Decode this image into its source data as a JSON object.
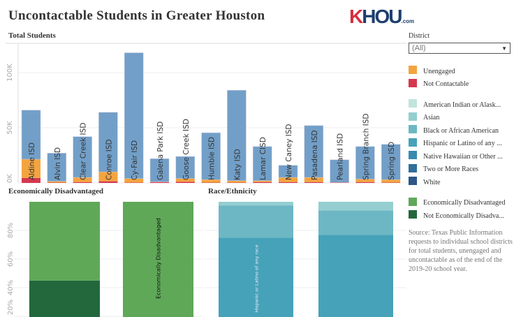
{
  "title": "Uncontactable Students in Greater Houston",
  "logo": {
    "text": "KHOU",
    "suffix": ".com"
  },
  "colors": {
    "total": "#729fc8",
    "unengaged": "#f3a43f",
    "not_contactable": "#d5384f",
    "econ": "#5fa858",
    "not_econ": "#23683d"
  },
  "chart_data": [
    {
      "type": "bar",
      "title": "Total Students",
      "stacked": true,
      "ylim": [
        0,
        125000
      ],
      "ticks": [
        "0K",
        "50K",
        "100K"
      ],
      "tick_values": [
        0,
        50000,
        100000
      ],
      "grid": true,
      "categories": [
        "Aldine ISD",
        "Alvin ISD",
        "Clear Creek ISD",
        "Conroe ISD",
        "Cy-Fair ISD",
        "Galena Park ISD",
        "Goose Creek ISD",
        "Humble ISD",
        "Katy ISD",
        "Lamar CISD",
        "New Caney ISD",
        "Pasadena ISD",
        "Pearland ISD",
        "Spring Branch ISD",
        "Spring ISD"
      ],
      "series": [
        {
          "name": "Not Contactable",
          "values": [
            4500,
            300,
            800,
            1500,
            300,
            800,
            1000,
            300,
            300,
            800,
            800,
            800,
            300,
            800,
            300
          ]
        },
        {
          "name": "Unengaged",
          "values": [
            17000,
            1200,
            4200,
            8500,
            3700,
            200,
            3000,
            2700,
            1700,
            1200,
            4200,
            4200,
            200,
            2700,
            2700
          ]
        },
        {
          "name": "Total",
          "values": [
            44500,
            25500,
            37000,
            54000,
            114000,
            21000,
            20000,
            42500,
            82000,
            31000,
            11000,
            47000,
            20500,
            29500,
            32000
          ]
        }
      ]
    },
    {
      "type": "bar",
      "title": "Economically Disadvantaged",
      "stacked": true,
      "ylim": [
        0,
        100
      ],
      "ticks": [
        "20%",
        "40%",
        "60%",
        "80%"
      ],
      "tick_values": [
        20,
        40,
        60,
        80
      ],
      "grid": true,
      "series": [
        {
          "name": "Not Economically Disadvantaged",
          "values": [
            45,
            19.5
          ]
        },
        {
          "name": "Economically Disadvantaged",
          "values": [
            55,
            80.5
          ]
        }
      ],
      "bar_labels": [
        "",
        "Economically Disadvantaged"
      ]
    },
    {
      "type": "bar",
      "title": "Race/Ethnicity",
      "stacked": true,
      "ylim": [
        0,
        100
      ],
      "grid": true,
      "series": [
        {
          "name": "White",
          "values": [
            8,
            13
          ]
        },
        {
          "name": "Two or More Races",
          "values": [
            2,
            3
          ]
        },
        {
          "name": "Hispanic or Latino of any race",
          "values": [
            65,
            61
          ]
        },
        {
          "name": "Black or African American",
          "values": [
            22.5,
            17
          ]
        },
        {
          "name": "Asian",
          "values": [
            2.5,
            6
          ]
        }
      ],
      "bar_labels": [
        "Hispanic or Latino of any race",
        ""
      ]
    }
  ],
  "sidebar": {
    "filter_label": "District",
    "filter_value": "(All)",
    "legend1": [
      {
        "label": "Unengaged",
        "color": "#f3a43f"
      },
      {
        "label": "Not Contactable",
        "color": "#d5384f"
      }
    ],
    "legend2": [
      {
        "label": "American Indian or Alask...",
        "color": "#bfe5dc"
      },
      {
        "label": "Asian",
        "color": "#94ced0"
      },
      {
        "label": "Black or African American",
        "color": "#6db7c4"
      },
      {
        "label": "Hispanic or Latino of any ...",
        "color": "#46a2b9"
      },
      {
        "label": "Native Hawaiian or Other ...",
        "color": "#398aaf"
      },
      {
        "label": "Two or More Races",
        "color": "#306f9b"
      },
      {
        "label": "White",
        "color": "#2c5787"
      }
    ],
    "legend3": [
      {
        "label": "Economically Disadvantaged",
        "color": "#5fa858"
      },
      {
        "label": "Not Economically Disadva...",
        "color": "#23683d"
      }
    ],
    "source": "Source: Texas Public Information requests to individual school districts for total students, unengaged and uncontactable as of the end of the 2019-20 school year."
  }
}
